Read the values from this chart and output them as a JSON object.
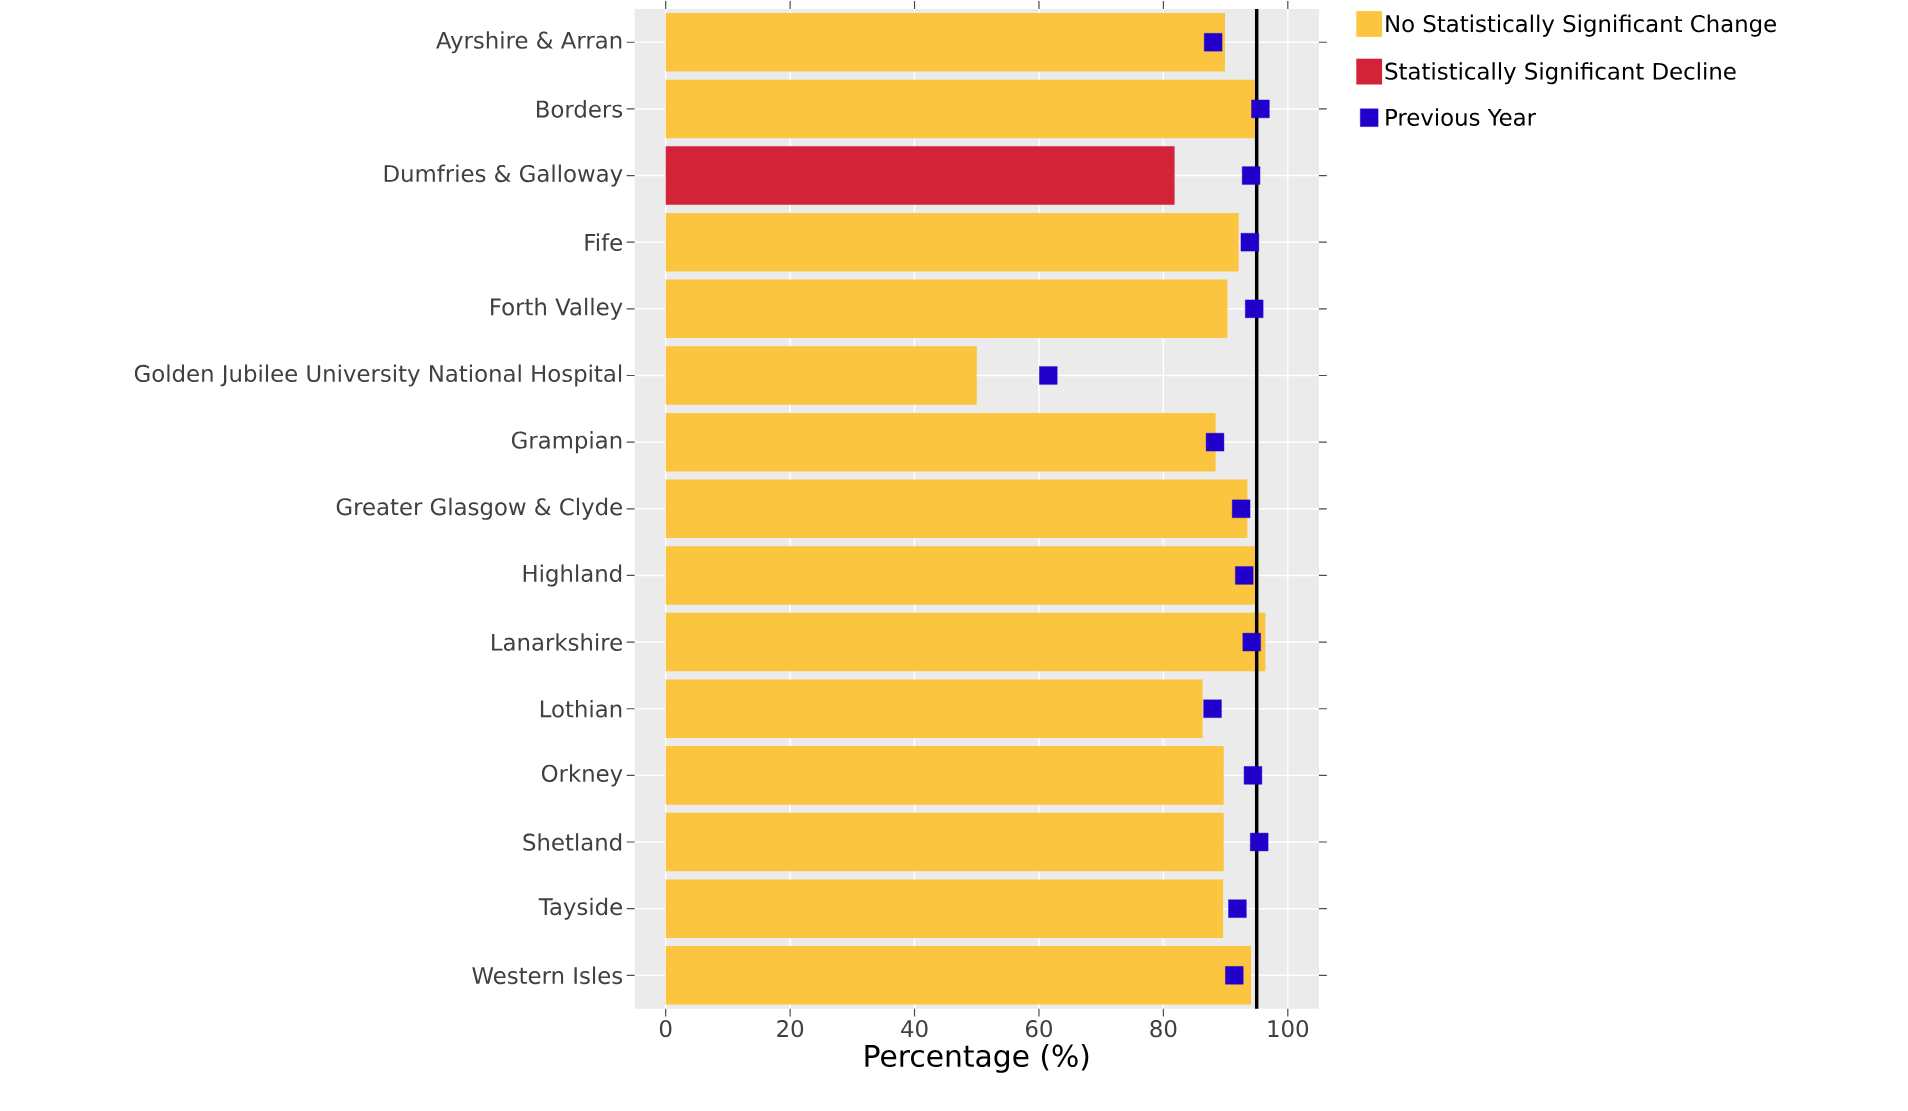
{
  "chart_data": {
    "type": "bar",
    "orientation": "horizontal",
    "xlabel": "Percentage (%)",
    "categories": [
      "Ayrshire & Arran",
      "Borders",
      "Dumfries & Galloway",
      "Fife",
      "Forth Valley",
      "Golden Jubilee University National Hospital",
      "Grampian",
      "Greater Glasgow & Clyde",
      "Highland",
      "Lanarkshire",
      "Lothian",
      "Orkney",
      "Shetland",
      "Tayside",
      "Western Isles"
    ],
    "series": [
      {
        "name": "No Statistically Significant Change",
        "color": "#fbc540",
        "values": [
          89.9,
          94.7,
          null,
          92.1,
          90.3,
          50.0,
          88.4,
          93.5,
          94.7,
          96.4,
          86.3,
          89.7,
          89.7,
          89.6,
          94.1
        ]
      },
      {
        "name": "Statistically Significant Decline",
        "color": "#d22339",
        "values": [
          null,
          null,
          81.8,
          null,
          null,
          null,
          null,
          null,
          null,
          null,
          null,
          null,
          null,
          null,
          null
        ]
      },
      {
        "name": "Previous Year",
        "type": "scatter",
        "marker": "square",
        "color": "#2200cc",
        "values": [
          88.0,
          95.6,
          94.1,
          93.9,
          94.6,
          61.5,
          88.3,
          92.5,
          93.0,
          94.2,
          87.9,
          94.4,
          95.4,
          91.9,
          91.4
        ]
      }
    ],
    "xlim": [
      -5,
      105
    ],
    "xticks": [
      0,
      20,
      40,
      60,
      80,
      100
    ],
    "ref_lines": [
      {
        "axis": "x",
        "value": 95,
        "color": "#000000"
      }
    ],
    "grid": true,
    "legend": "top right"
  }
}
